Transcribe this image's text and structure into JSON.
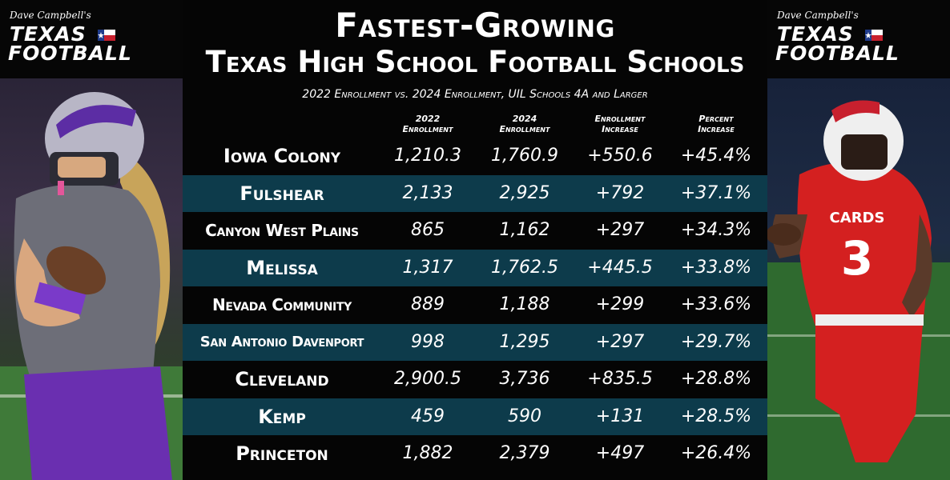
{
  "brand": {
    "small": "Dave Campbell's",
    "line1": "TEXAS",
    "line2": "FOOTBALL"
  },
  "title": {
    "line1": "Fastest-Growing",
    "line2": "Texas High School Football Schools",
    "subtitle": "2022 Enrollment vs. 2024 Enrollment, UIL Schools 4A and Larger"
  },
  "columns": {
    "c2022_top": "2022",
    "c2022_bottom": "Enrollment",
    "c2024_top": "2024",
    "c2024_bottom": "Enrollment",
    "inc_top": "Enrollment",
    "inc_bottom": "Increase",
    "pct_top": "Percent",
    "pct_bottom": "Increase"
  },
  "rows": [
    {
      "school": "Iowa Colony",
      "e2022": "1,210.3",
      "e2024": "1,760.9",
      "inc": "+550.6",
      "pct": "+45.4%"
    },
    {
      "school": "Fulshear",
      "e2022": "2,133",
      "e2024": "2,925",
      "inc": "+792",
      "pct": "+37.1%"
    },
    {
      "school": "Canyon West Plains",
      "e2022": "865",
      "e2024": "1,162",
      "inc": "+297",
      "pct": "+34.3%"
    },
    {
      "school": "Melissa",
      "e2022": "1,317",
      "e2024": "1,762.5",
      "inc": "+445.5",
      "pct": "+33.8%"
    },
    {
      "school": "Nevada Community",
      "e2022": "889",
      "e2024": "1,188",
      "inc": "+299",
      "pct": "+33.6%"
    },
    {
      "school": "San Antonio Davenport",
      "e2022": "998",
      "e2024": "1,295",
      "inc": "+297",
      "pct": "+29.7%"
    },
    {
      "school": "Cleveland",
      "e2022": "2,900.5",
      "e2024": "3,736",
      "inc": "+835.5",
      "pct": "+28.8%"
    },
    {
      "school": "Kemp",
      "e2022": "459",
      "e2024": "590",
      "inc": "+131",
      "pct": "+28.5%"
    },
    {
      "school": "Princeton",
      "e2022": "1,882",
      "e2024": "2,379",
      "inc": "+497",
      "pct": "+26.4%"
    }
  ],
  "photos": {
    "right_jersey_text": "CARDS",
    "right_jersey_number": "3"
  },
  "colors": {
    "row_dark": "#050505",
    "row_teal": "#0d3b4b",
    "left_uniform": "#6a2fb0",
    "right_uniform": "#d42020"
  }
}
